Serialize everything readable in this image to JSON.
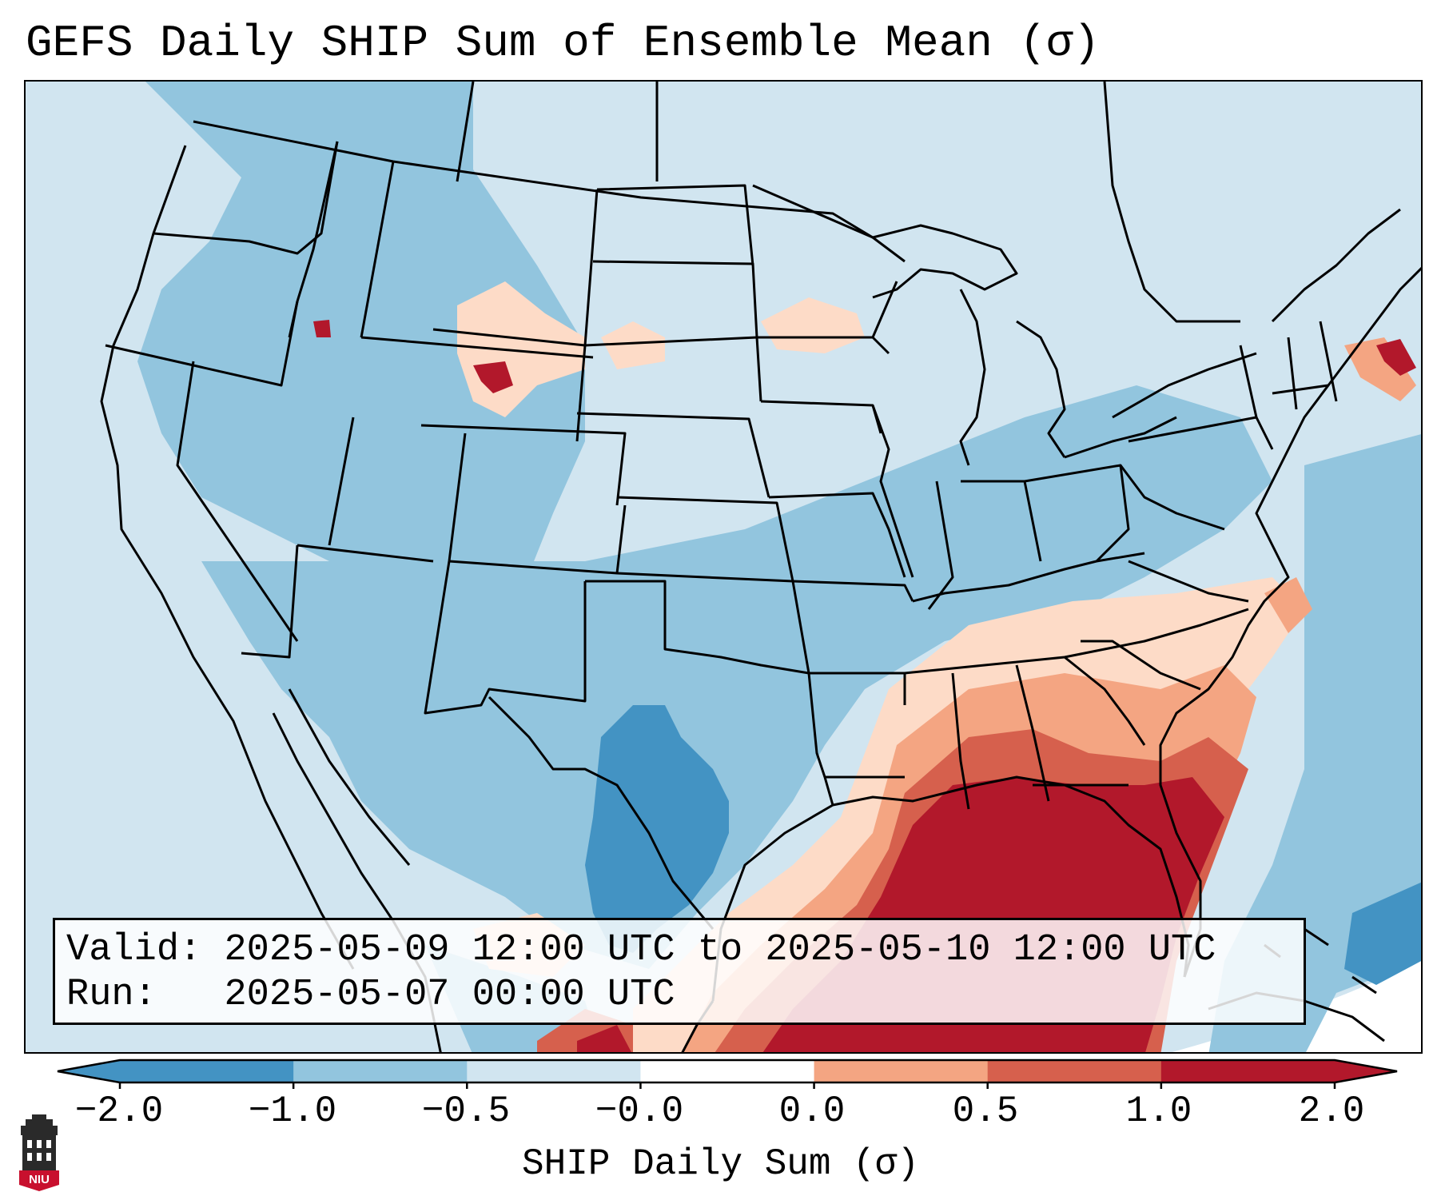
{
  "title": "GEFS Daily SHIP Sum of Ensemble Mean (σ)",
  "info": {
    "valid_label": "Valid:",
    "valid_value": "2025-05-09 12:00 UTC to 2025-05-10 12:00 UTC",
    "run_label": "Run:",
    "run_value": "2025-05-07 00:00 UTC"
  },
  "colorbar": {
    "label": "SHIP Daily Sum (σ)",
    "ticks": [
      "−2.0",
      "−1.0",
      "−0.5",
      "−0.0",
      "0.0",
      "0.5",
      "1.0",
      "2.0"
    ],
    "colors": [
      "#4393c3",
      "#92c5de",
      "#d1e5f0",
      "#ffffff",
      "#fddbc7",
      "#f4a582",
      "#d6604d",
      "#b2182b"
    ]
  },
  "logo": {
    "text": "NIU"
  }
}
